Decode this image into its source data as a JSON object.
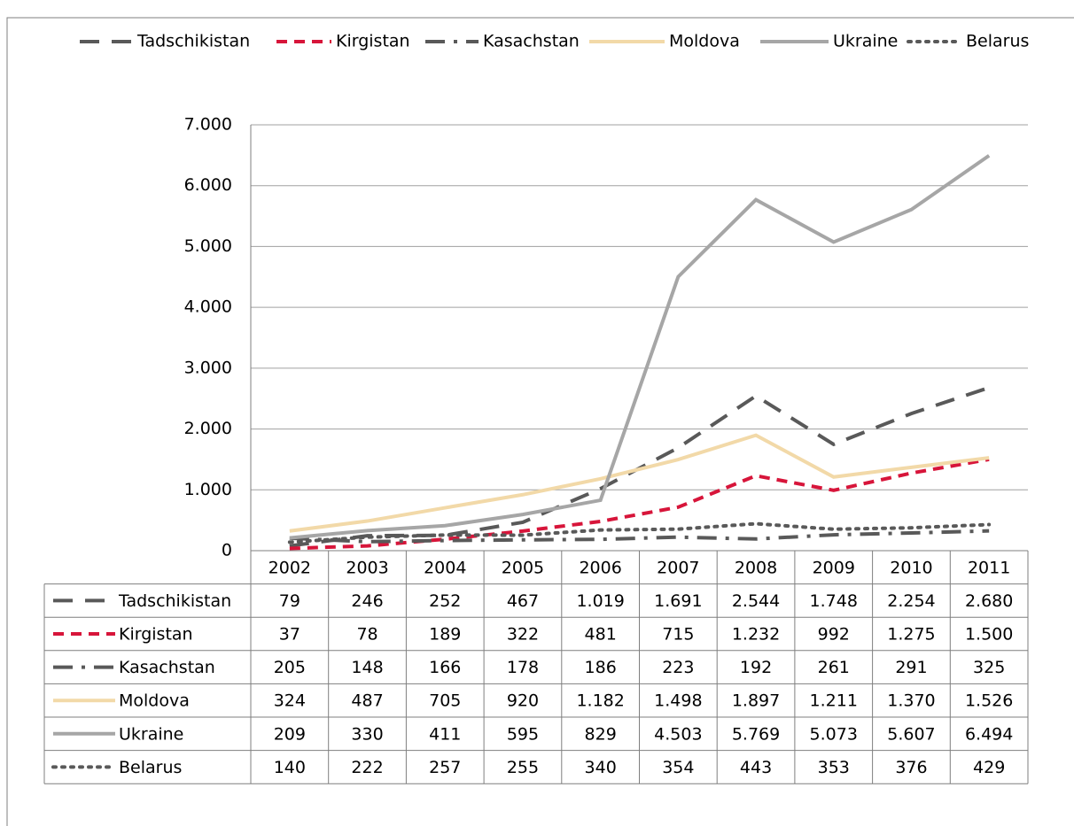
{
  "chart_data": {
    "type": "line",
    "categories": [
      "2002",
      "2003",
      "2004",
      "2005",
      "2006",
      "2007",
      "2008",
      "2009",
      "2010",
      "2011"
    ],
    "ylim": [
      0,
      7000
    ],
    "yticks": [
      0,
      {
        "value": 1000,
        "label": "1.000"
      },
      {
        "value": 2000,
        "label": "2.000"
      },
      {
        "value": 3000,
        "label": "3.000"
      },
      {
        "value": 4000,
        "label": "4.000"
      },
      {
        "value": 5000,
        "label": "5.000"
      },
      {
        "value": 6000,
        "label": "6.000"
      },
      {
        "value": 7000,
        "label": "7.000"
      }
    ],
    "grid": true,
    "legend": "top",
    "series": [
      {
        "name": "Tadschikistan",
        "color": "#595959",
        "dash": "long-dash",
        "values": [
          79,
          246,
          252,
          467,
          1019,
          1691,
          2544,
          1748,
          2254,
          2680
        ],
        "value_labels": [
          "79",
          "246",
          "252",
          "467",
          "1.019",
          "1.691",
          "2.544",
          "1.748",
          "2.254",
          "2.680"
        ]
      },
      {
        "name": "Kirgistan",
        "color": "#d7153a",
        "dash": "dash",
        "values": [
          37,
          78,
          189,
          322,
          481,
          715,
          1232,
          992,
          1275,
          1500
        ],
        "value_labels": [
          "37",
          "78",
          "189",
          "322",
          "481",
          "715",
          "1.232",
          "992",
          "1.275",
          "1.500"
        ]
      },
      {
        "name": "Kasachstan",
        "color": "#595959",
        "dash": "dash-dot",
        "values": [
          205,
          148,
          166,
          178,
          186,
          223,
          192,
          261,
          291,
          325
        ],
        "value_labels": [
          "205",
          "148",
          "166",
          "178",
          "186",
          "223",
          "192",
          "261",
          "291",
          "325"
        ]
      },
      {
        "name": "Moldova",
        "color": "#f2d9a8",
        "dash": "solid",
        "values": [
          324,
          487,
          705,
          920,
          1182,
          1498,
          1897,
          1211,
          1370,
          1526
        ],
        "value_labels": [
          "324",
          "487",
          "705",
          "920",
          "1.182",
          "1.498",
          "1.897",
          "1.211",
          "1.370",
          "1.526"
        ]
      },
      {
        "name": "Ukraine",
        "color": "#a6a6a6",
        "dash": "solid",
        "values": [
          209,
          330,
          411,
          595,
          829,
          4503,
          5769,
          5073,
          5607,
          6494
        ],
        "value_labels": [
          "209",
          "330",
          "411",
          "595",
          "829",
          "4.503",
          "5.769",
          "5.073",
          "5.607",
          "6.494"
        ]
      },
      {
        "name": "Belarus",
        "color": "#595959",
        "dash": "dot",
        "values": [
          140,
          222,
          257,
          255,
          340,
          354,
          443,
          353,
          376,
          429
        ],
        "value_labels": [
          "140",
          "222",
          "257",
          "255",
          "340",
          "354",
          "443",
          "353",
          "376",
          "429"
        ]
      }
    ]
  }
}
